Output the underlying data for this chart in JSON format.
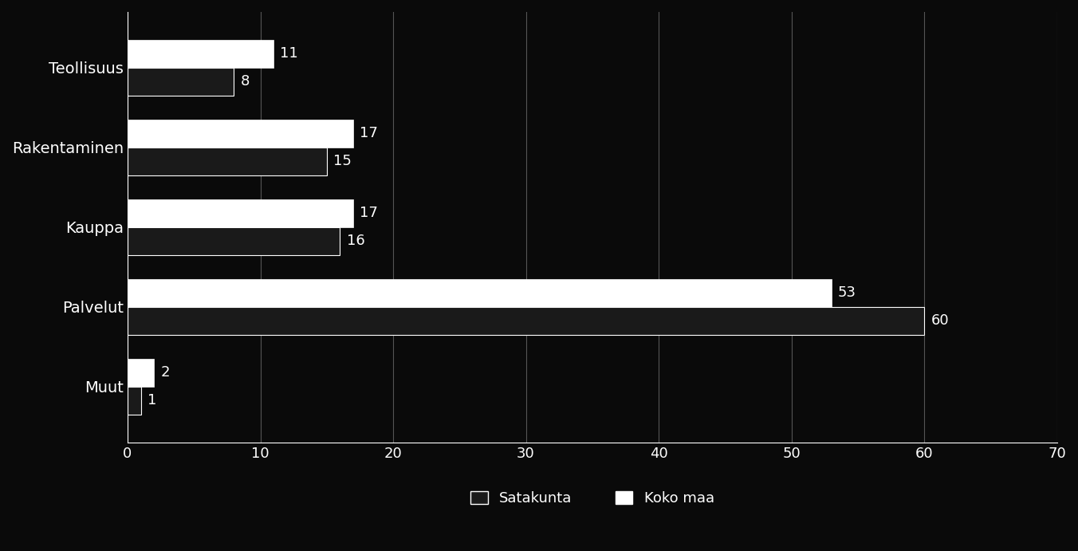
{
  "categories": [
    "Muut",
    "Palvelut",
    "Kauppa",
    "Rakentaminen",
    "Teollisuus"
  ],
  "koko_maa": [
    2,
    53,
    17,
    17,
    11
  ],
  "satakunta": [
    1,
    60,
    16,
    15,
    8
  ],
  "bar_color_koko_maa": "#ffffff",
  "bar_color_satakunta": "#1a1a1a",
  "background_color": "#0a0a0a",
  "text_color": "#ffffff",
  "xlim": [
    0,
    70
  ],
  "xticks": [
    0,
    10,
    20,
    30,
    40,
    50,
    60,
    70
  ],
  "legend_satakunta": "Satakunta",
  "legend_koko_maa": "Koko maa",
  "bar_height": 0.35,
  "label_fontsize": 13,
  "tick_fontsize": 13,
  "legend_fontsize": 13,
  "category_fontsize": 14,
  "grid_color": "#555555",
  "axis_color": "#ffffff",
  "bar_edge_color": "#ffffff"
}
